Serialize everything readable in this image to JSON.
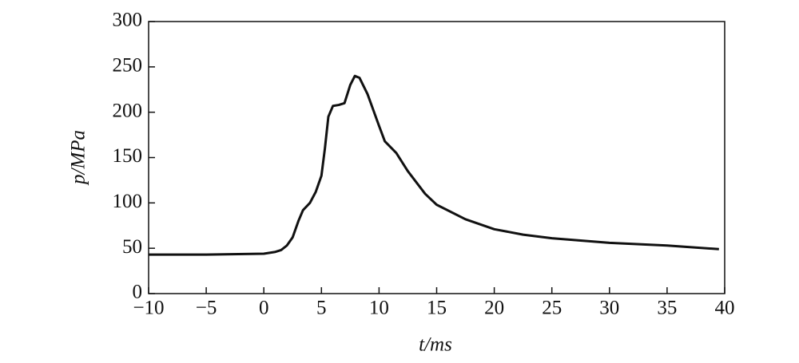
{
  "chart_data": {
    "type": "line",
    "xlabel": "t/ms",
    "ylabel": "p/MPa",
    "x": [
      -10,
      -5,
      0,
      1,
      1.5,
      2,
      2.5,
      3,
      3.4,
      4,
      4.5,
      5,
      5.3,
      5.6,
      6,
      6.5,
      7,
      7.5,
      7.9,
      8.3,
      9,
      10,
      10.5,
      11.5,
      12.5,
      14,
      15,
      17.5,
      20,
      22.5,
      25,
      30,
      35,
      39.5
    ],
    "series": [
      {
        "color": "#111111",
        "values": [
          43,
          43,
          44,
          46,
          48,
          53,
          62,
          80,
          92,
          100,
          112,
          130,
          160,
          195,
          207,
          208,
          210,
          230,
          240,
          238,
          220,
          185,
          168,
          155,
          135,
          110,
          98,
          82,
          71,
          65,
          61,
          56,
          53,
          49
        ]
      }
    ],
    "xlim": [
      -10,
      40
    ],
    "xticks": [
      {
        "value": -10,
        "label": "−10"
      },
      {
        "value": -5,
        "label": "−5"
      },
      0,
      5,
      10,
      15,
      20,
      25,
      30,
      35,
      40
    ],
    "ylim": [
      0,
      300
    ],
    "yticks": [
      0,
      50,
      100,
      150,
      200,
      250,
      300
    ]
  }
}
